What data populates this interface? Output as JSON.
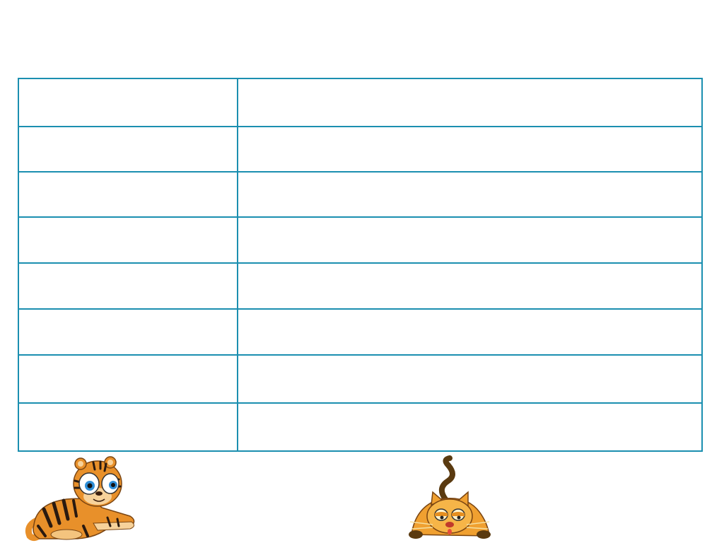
{
  "table": {
    "rows": [
      {
        "left": "",
        "right": ""
      },
      {
        "left": "",
        "right": ""
      },
      {
        "left": "",
        "right": ""
      },
      {
        "left": "",
        "right": ""
      },
      {
        "left": "",
        "right": ""
      },
      {
        "left": "",
        "right": ""
      },
      {
        "left": "",
        "right": ""
      },
      {
        "left": "",
        "right": ""
      }
    ]
  },
  "decorations": {
    "left_icon": "tiger-icon",
    "right_icon": "cat-icon"
  },
  "colors": {
    "table_border": "#1b8fb0",
    "tiger_orange": "#e8902a",
    "cat_orange": "#f0a030",
    "stripe_dark": "#2a1a10"
  }
}
